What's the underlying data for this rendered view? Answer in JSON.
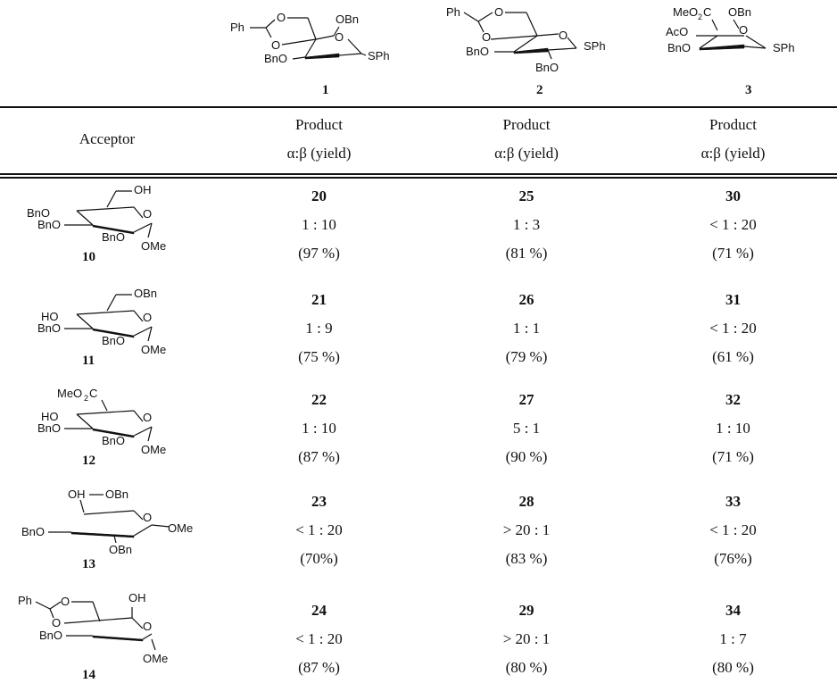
{
  "donors": [
    {
      "id": "1",
      "labels": {
        "ph": "Ph",
        "o1": "O",
        "o2": "O",
        "o_ring": "O",
        "obn": "OBn",
        "bno": "BnO",
        "sph": "SPh"
      }
    },
    {
      "id": "2",
      "labels": {
        "ph": "Ph",
        "o1": "O",
        "o2": "O",
        "o_ring": "O",
        "bno1": "BnO",
        "bno2": "BnO",
        "sph": "SPh"
      }
    },
    {
      "id": "3",
      "labels": {
        "meo2c": "MeO",
        "sub2": "2",
        "c": "C",
        "obn": "OBn",
        "aco": "AcO",
        "bno": "BnO",
        "o_ring": "O",
        "sph": "SPh"
      }
    }
  ],
  "header": {
    "acceptor_label": "Acceptor",
    "columns": [
      {
        "title": "Product",
        "ratio": "α:β (yield)"
      },
      {
        "title": "Product",
        "ratio": "α:β (yield)"
      },
      {
        "title": "Product",
        "ratio": "α:β (yield)"
      }
    ]
  },
  "rows": [
    {
      "acceptor_id": "10",
      "acceptor_labels": {
        "top": "OH",
        "l1": "BnO",
        "l2": "BnO",
        "l3": "BnO",
        "ring": "O",
        "ome": "OMe"
      },
      "products": [
        {
          "id": "20",
          "ratio": "1 : 10",
          "yield": "(97 %)"
        },
        {
          "id": "25",
          "ratio": "1 : 3",
          "yield": "(81 %)"
        },
        {
          "id": "30",
          "ratio": "< 1 : 20",
          "yield": "(71 %)"
        }
      ]
    },
    {
      "acceptor_id": "11",
      "acceptor_labels": {
        "top": "OBn",
        "l1": "HO",
        "l2": "BnO",
        "l3": "BnO",
        "ring": "O",
        "ome": "OMe"
      },
      "products": [
        {
          "id": "21",
          "ratio": "1 : 9",
          "yield": "(75 %)"
        },
        {
          "id": "26",
          "ratio": "1 : 1",
          "yield": "(79 %)"
        },
        {
          "id": "31",
          "ratio": "< 1 : 20",
          "yield": "(61 %)"
        }
      ]
    },
    {
      "acceptor_id": "12",
      "acceptor_labels": {
        "top": "MeO",
        "top_sub": "2",
        "top_c": "C",
        "l1": "HO",
        "l2": "BnO",
        "l3": "BnO",
        "ring": "O",
        "ome": "OMe"
      },
      "products": [
        {
          "id": "22",
          "ratio": "1 : 10",
          "yield": "(87 %)"
        },
        {
          "id": "27",
          "ratio": "5 : 1",
          "yield": "(90 %)"
        },
        {
          "id": "32",
          "ratio": "1 : 10",
          "yield": "(71 %)"
        }
      ]
    },
    {
      "acceptor_id": "13",
      "acceptor_labels": {
        "oh": "OH",
        "obn_top": "OBn",
        "l2": "BnO",
        "obn_bot": "OBn",
        "ring": "O",
        "ome": "OMe"
      },
      "products": [
        {
          "id": "23",
          "ratio": "< 1 : 20",
          "yield": "(70%)"
        },
        {
          "id": "28",
          "ratio": "> 20 : 1",
          "yield": "(83 %)"
        },
        {
          "id": "33",
          "ratio": "< 1 : 20",
          "yield": "(76%)"
        }
      ]
    },
    {
      "acceptor_id": "14",
      "acceptor_labels": {
        "ph": "Ph",
        "o1": "O",
        "o2": "O",
        "oh": "OH",
        "bno": "BnO",
        "ring": "O",
        "ome": "OMe"
      },
      "products": [
        {
          "id": "24",
          "ratio": "< 1 : 20",
          "yield": "(87 %)"
        },
        {
          "id": "29",
          "ratio": "> 20 : 1",
          "yield": "(80 %)"
        },
        {
          "id": "34",
          "ratio": "1 : 7",
          "yield": "(80 %)"
        }
      ]
    }
  ]
}
